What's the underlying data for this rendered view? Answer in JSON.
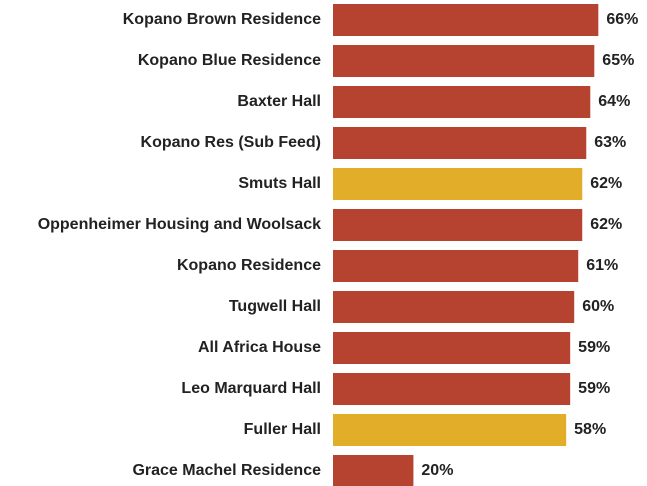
{
  "chart_data": {
    "type": "bar",
    "orientation": "horizontal",
    "categories": [
      "Kopano Brown Residence",
      "Kopano Blue Residence",
      "Baxter Hall",
      "Kopano Res (Sub Feed)",
      "Smuts Hall",
      "Oppenheimer Housing and Woolsack",
      "Kopano Residence",
      "Tugwell Hall",
      "All Africa House",
      "Leo Marquard Hall",
      "Fuller Hall",
      "Grace Machel Residence"
    ],
    "values": [
      66,
      65,
      64,
      63,
      62,
      62,
      61,
      60,
      59,
      59,
      58,
      20
    ],
    "value_labels": [
      "66%",
      "65%",
      "64%",
      "63%",
      "62%",
      "62%",
      "61%",
      "60%",
      "59%",
      "59%",
      "58%",
      "20%"
    ],
    "colors": [
      "#b5432f",
      "#b5432f",
      "#b5432f",
      "#b5432f",
      "#e2ae2a",
      "#b5432f",
      "#b5432f",
      "#b5432f",
      "#b5432f",
      "#b5432f",
      "#e2ae2a",
      "#b5432f"
    ]
  }
}
